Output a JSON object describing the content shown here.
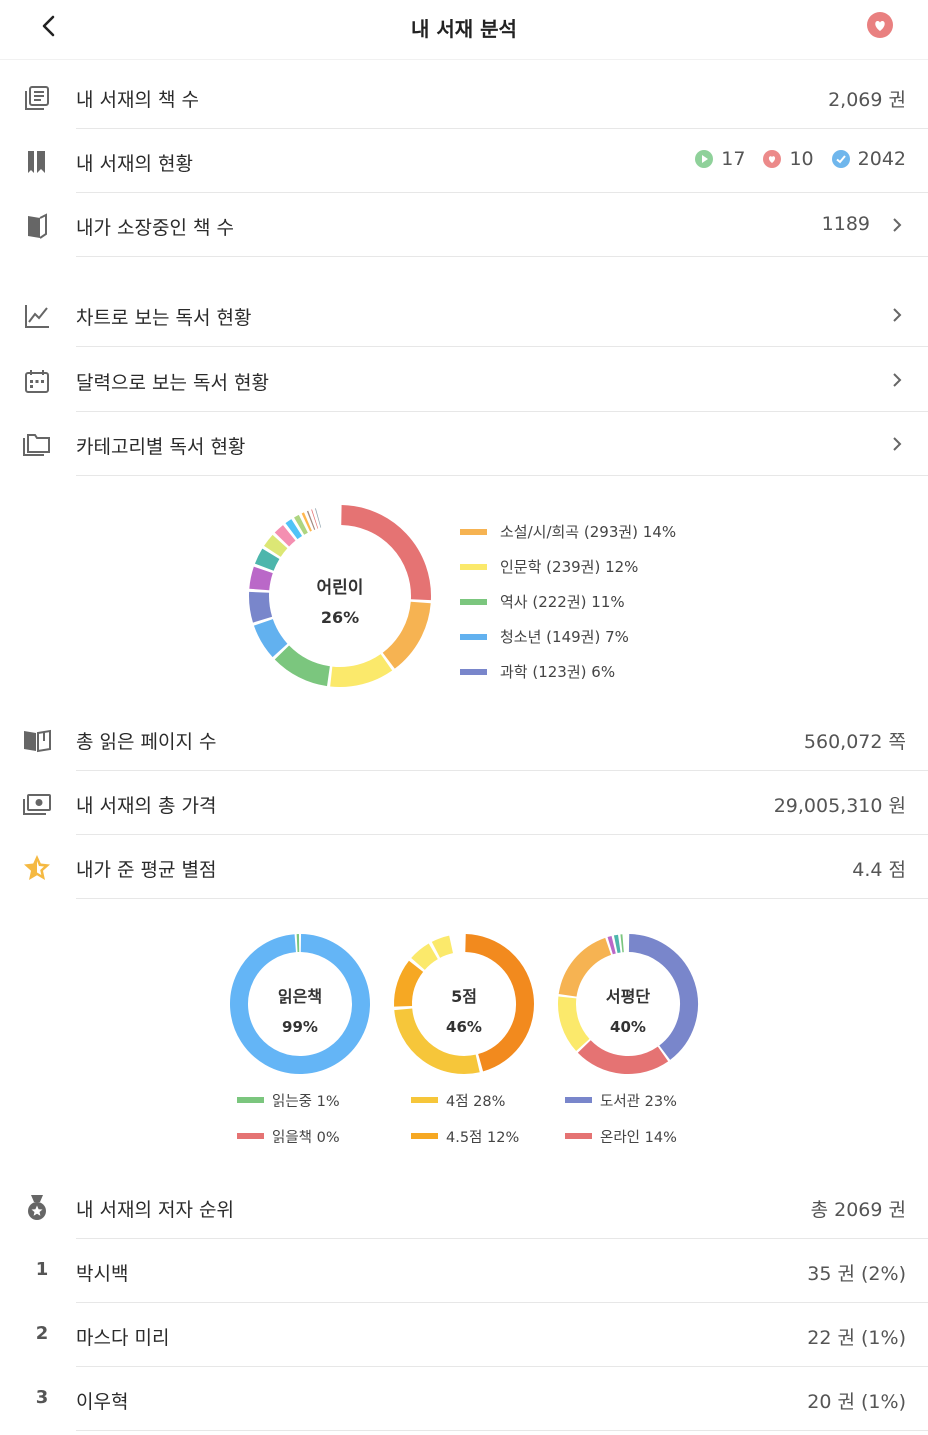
{
  "header": {
    "title": "내 서재 분석"
  },
  "rows": {
    "book_count": {
      "label": "내 서재의 책 수",
      "value": "2,069 권"
    },
    "status": {
      "label": "내 서재의 현황",
      "reading": "17",
      "wish": "10",
      "done": "2042"
    },
    "owned": {
      "label": "내가 소장중인 책 수",
      "value": "1189"
    },
    "chart_view": {
      "label": "차트로 보는 독서 현황"
    },
    "calendar_view": {
      "label": "달력으로 보는 독서 현황"
    },
    "category_view": {
      "label": "카테고리별 독서 현황"
    },
    "pages": {
      "label": "총 읽은 페이지 수",
      "value": "560,072 쪽"
    },
    "price": {
      "label": "내 서재의 총 가격",
      "value": "29,005,310 원"
    },
    "rating": {
      "label": "내가 준 평균 별점",
      "value": "4.4 점"
    },
    "authors": {
      "label": "내 서재의 저자 순위",
      "value": "총 2069 권"
    }
  },
  "authors": [
    {
      "rank": "1",
      "name": "박시백",
      "value": "35 권 (2%)"
    },
    {
      "rank": "2",
      "name": "마스다 미리",
      "value": "22 권 (1%)"
    },
    {
      "rank": "3",
      "name": "이우혁",
      "value": "20 권 (1%)"
    }
  ],
  "category_chart": {
    "center_label": "어린이",
    "center_pct": "26%",
    "legend": [
      {
        "label": "소설/시/희곡 (293권)  14%",
        "color": "#f6b352"
      },
      {
        "label": "인문학 (239권)  12%",
        "color": "#fbe96b"
      },
      {
        "label": "역사 (222권)  11%",
        "color": "#7bc67e"
      },
      {
        "label": "청소년 (149권)  7%",
        "color": "#62b1ef"
      },
      {
        "label": "과학 (123권)  6%",
        "color": "#7986cb"
      }
    ]
  },
  "chart_data": [
    {
      "type": "pie",
      "center_label": "어린이",
      "categories": [
        "어린이",
        "소설/시/희곡",
        "인문학",
        "역사",
        "청소년",
        "과학"
      ],
      "values": [
        26,
        14,
        12,
        11,
        7,
        6
      ],
      "colors": [
        "#e57373",
        "#f6b352",
        "#fbe96b",
        "#7bc67e",
        "#62b1ef",
        "#7986cb"
      ],
      "book_counts": [
        null,
        293,
        239,
        222,
        149,
        123
      ]
    },
    {
      "type": "pie",
      "center_label": "읽은책",
      "categories": [
        "읽은책",
        "읽는중",
        "읽을책"
      ],
      "values": [
        99,
        1,
        0
      ],
      "colors": [
        "#64b5f6",
        "#7bc67e",
        "#e57373"
      ]
    },
    {
      "type": "pie",
      "center_label": "5점",
      "categories": [
        "5점",
        "4점",
        "4.5점"
      ],
      "values": [
        46,
        28,
        12
      ],
      "colors": [
        "#f28a1e",
        "#f6c63a",
        "#f6a823"
      ]
    },
    {
      "type": "pie",
      "center_label": "서평단",
      "categories": [
        "서평단",
        "도서관",
        "온라인"
      ],
      "values": [
        40,
        23,
        14
      ],
      "colors": [
        "#7986cb",
        "#e57373",
        "#fbe96b"
      ]
    }
  ],
  "small_charts": [
    {
      "center_label": "읽은책",
      "center_pct": "99%",
      "legend": [
        {
          "label": "읽는중  1%",
          "color": "#7bc67e"
        },
        {
          "label": "읽을책  0%",
          "color": "#e57373"
        }
      ]
    },
    {
      "center_label": "5점",
      "center_pct": "46%",
      "legend": [
        {
          "label": "4점  28%",
          "color": "#f6c63a"
        },
        {
          "label": "4.5점  12%",
          "color": "#f6a823"
        }
      ]
    },
    {
      "center_label": "서평단",
      "center_pct": "40%",
      "legend": [
        {
          "label": "도서관  23%",
          "color": "#7986cb"
        },
        {
          "label": "온라인  14%",
          "color": "#e57373"
        }
      ]
    }
  ]
}
